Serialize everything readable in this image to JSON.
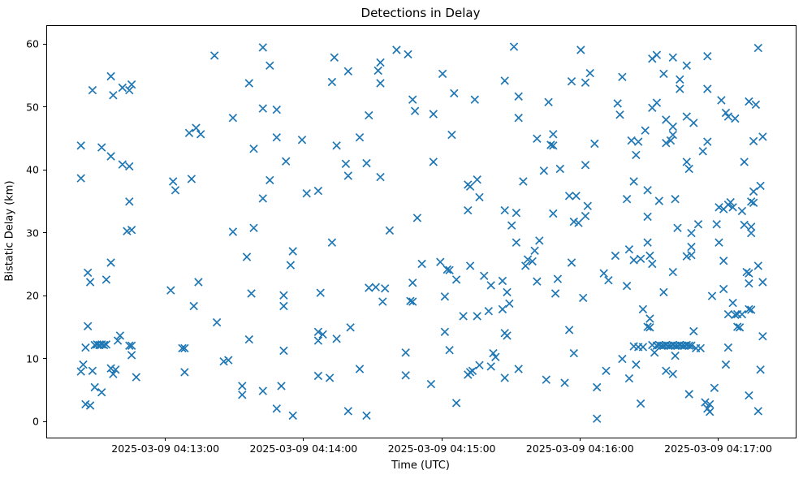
{
  "figure": {
    "title": "Detections in Delay",
    "background_color": "#ffffff",
    "accent_color": "#1f77b4"
  },
  "chart_data": {
    "type": "scatter",
    "title": "Detections in Delay",
    "xlabel": "Time (UTC)",
    "ylabel": "Bistatic Delay (km)",
    "legend": null,
    "grid": false,
    "marker": {
      "style": "x",
      "color": "#1f77b4",
      "half_size_px": 4.6,
      "stroke_px": 1.7
    },
    "x_unit": "seconds after 2025-03-09 04:12:00 UTC",
    "xlim": [
      8.3,
      333.3
    ],
    "ylim": [
      -2.4,
      63.0
    ],
    "xticks": [
      {
        "value": 60,
        "label": "2025-03-09 04:13:00"
      },
      {
        "value": 120,
        "label": "2025-03-09 04:14:00"
      },
      {
        "value": 180,
        "label": "2025-03-09 04:15:00"
      },
      {
        "value": 240,
        "label": "2025-03-09 04:16:00"
      },
      {
        "value": 300,
        "label": "2025-03-09 04:17:00"
      }
    ],
    "yticks": [
      0,
      10,
      20,
      30,
      40,
      50,
      60
    ],
    "points": [
      [
        23,
        44.0
      ],
      [
        32,
        43.7
      ],
      [
        36,
        42.3
      ],
      [
        41,
        41.0
      ],
      [
        44,
        40.7
      ],
      [
        23,
        38.8
      ],
      [
        63,
        38.3
      ],
      [
        71,
        38.7
      ],
      [
        64,
        36.9
      ],
      [
        44,
        35.1
      ],
      [
        36,
        55.0
      ],
      [
        28,
        52.8
      ],
      [
        37,
        52.0
      ],
      [
        41,
        53.2
      ],
      [
        45,
        53.7
      ],
      [
        44,
        52.8
      ],
      [
        70,
        46.0
      ],
      [
        73,
        46.8
      ],
      [
        75,
        45.8
      ],
      [
        81,
        58.3
      ],
      [
        89,
        48.4
      ],
      [
        43,
        30.4
      ],
      [
        45,
        30.6
      ],
      [
        89,
        30.3
      ],
      [
        36,
        25.4
      ],
      [
        26,
        23.8
      ],
      [
        27,
        22.3
      ],
      [
        34,
        22.7
      ],
      [
        74,
        22.3
      ],
      [
        62,
        21.0
      ],
      [
        72,
        18.5
      ],
      [
        82,
        15.9
      ],
      [
        26,
        15.3
      ],
      [
        40,
        13.8
      ],
      [
        39,
        13.0
      ],
      [
        25,
        11.9
      ],
      [
        29,
        12.3
      ],
      [
        30,
        12.4
      ],
      [
        31,
        12.3
      ],
      [
        32,
        12.4
      ],
      [
        33,
        12.3
      ],
      [
        34,
        12.4
      ],
      [
        44,
        12.2
      ],
      [
        45,
        12.2
      ],
      [
        45,
        10.7
      ],
      [
        67,
        11.8
      ],
      [
        68,
        11.8
      ],
      [
        85,
        9.7
      ],
      [
        87,
        9.9
      ],
      [
        24,
        9.2
      ],
      [
        23,
        8.1
      ],
      [
        28,
        8.2
      ],
      [
        36,
        8.6
      ],
      [
        38,
        8.4
      ],
      [
        37,
        7.7
      ],
      [
        47,
        7.2
      ],
      [
        68,
        8.0
      ],
      [
        29,
        5.6
      ],
      [
        32,
        4.8
      ],
      [
        25,
        2.9
      ],
      [
        27,
        2.7
      ],
      [
        102,
        59.6
      ],
      [
        160,
        59.2
      ],
      [
        165,
        58.5
      ],
      [
        133,
        58.0
      ],
      [
        105,
        56.7
      ],
      [
        153,
        57.2
      ],
      [
        152,
        55.9
      ],
      [
        139,
        55.8
      ],
      [
        96,
        53.9
      ],
      [
        132,
        54.1
      ],
      [
        153,
        53.9
      ],
      [
        167,
        51.3
      ],
      [
        168,
        49.5
      ],
      [
        102,
        49.9
      ],
      [
        108,
        49.7
      ],
      [
        148,
        48.8
      ],
      [
        108,
        45.3
      ],
      [
        119,
        44.9
      ],
      [
        144,
        45.3
      ],
      [
        134,
        44.0
      ],
      [
        98,
        43.5
      ],
      [
        112,
        41.5
      ],
      [
        138,
        41.1
      ],
      [
        147,
        41.2
      ],
      [
        139,
        39.2
      ],
      [
        153,
        39.0
      ],
      [
        105,
        38.5
      ],
      [
        121,
        36.4
      ],
      [
        126,
        36.8
      ],
      [
        102,
        35.6
      ],
      [
        169,
        32.5
      ],
      [
        98,
        30.9
      ],
      [
        157,
        30.5
      ],
      [
        132,
        28.6
      ],
      [
        95,
        26.3
      ],
      [
        115,
        27.2
      ],
      [
        114,
        25.0
      ],
      [
        167,
        22.2
      ],
      [
        148,
        21.4
      ],
      [
        151,
        21.5
      ],
      [
        155,
        21.3
      ],
      [
        97,
        20.5
      ],
      [
        127,
        20.6
      ],
      [
        111,
        20.2
      ],
      [
        111,
        18.5
      ],
      [
        154,
        19.2
      ],
      [
        166,
        19.3
      ],
      [
        167,
        19.2
      ],
      [
        140,
        15.1
      ],
      [
        126,
        14.4
      ],
      [
        128,
        14.0
      ],
      [
        126,
        13.0
      ],
      [
        134,
        13.3
      ],
      [
        96,
        13.2
      ],
      [
        111,
        11.4
      ],
      [
        164,
        11.1
      ],
      [
        144,
        8.5
      ],
      [
        126,
        7.4
      ],
      [
        131,
        7.1
      ],
      [
        164,
        7.5
      ],
      [
        93,
        5.8
      ],
      [
        93,
        4.4
      ],
      [
        102,
        5.0
      ],
      [
        110,
        5.8
      ],
      [
        108,
        2.2
      ],
      [
        115,
        1.1
      ],
      [
        139,
        1.8
      ],
      [
        147,
        1.1
      ],
      [
        211,
        59.7
      ],
      [
        240,
        59.2
      ],
      [
        180,
        55.4
      ],
      [
        244,
        55.5
      ],
      [
        207,
        54.3
      ],
      [
        236,
        54.2
      ],
      [
        242,
        54.0
      ],
      [
        185,
        52.3
      ],
      [
        194,
        51.3
      ],
      [
        213,
        51.8
      ],
      [
        226,
        50.9
      ],
      [
        176,
        49.0
      ],
      [
        213,
        48.4
      ],
      [
        184,
        45.7
      ],
      [
        221,
        45.1
      ],
      [
        228,
        45.8
      ],
      [
        227,
        44.1
      ],
      [
        228,
        44.0
      ],
      [
        246,
        44.3
      ],
      [
        176,
        41.4
      ],
      [
        224,
        40.0
      ],
      [
        231,
        40.3
      ],
      [
        242,
        40.9
      ],
      [
        195,
        38.6
      ],
      [
        191,
        37.8
      ],
      [
        192,
        37.5
      ],
      [
        215,
        38.3
      ],
      [
        235,
        36.0
      ],
      [
        238,
        36.0
      ],
      [
        196,
        35.8
      ],
      [
        243,
        34.4
      ],
      [
        191,
        33.7
      ],
      [
        207,
        33.7
      ],
      [
        212,
        33.3
      ],
      [
        228,
        33.2
      ],
      [
        242,
        32.8
      ],
      [
        237,
        31.9
      ],
      [
        239,
        31.7
      ],
      [
        210,
        31.3
      ],
      [
        171,
        25.2
      ],
      [
        212,
        28.6
      ],
      [
        222,
        28.9
      ],
      [
        220,
        27.3
      ],
      [
        179,
        25.5
      ],
      [
        182,
        24.3
      ],
      [
        183,
        24.2
      ],
      [
        192,
        24.9
      ],
      [
        217,
        25.9
      ],
      [
        219,
        25.6
      ],
      [
        216,
        24.9
      ],
      [
        236,
        25.4
      ],
      [
        250,
        23.7
      ],
      [
        186,
        22.7
      ],
      [
        198,
        23.3
      ],
      [
        201,
        21.8
      ],
      [
        206,
        22.5
      ],
      [
        208,
        20.7
      ],
      [
        221,
        22.4
      ],
      [
        230,
        22.8
      ],
      [
        229,
        20.5
      ],
      [
        181,
        20.0
      ],
      [
        241,
        19.8
      ],
      [
        209,
        18.9
      ],
      [
        206,
        18.0
      ],
      [
        200,
        17.7
      ],
      [
        189,
        16.9
      ],
      [
        195,
        16.9
      ],
      [
        181,
        14.4
      ],
      [
        207,
        14.2
      ],
      [
        208,
        13.8
      ],
      [
        235,
        14.7
      ],
      [
        183,
        11.5
      ],
      [
        202,
        11.0
      ],
      [
        203,
        10.4
      ],
      [
        237,
        11.0
      ],
      [
        193,
        8.2
      ],
      [
        196,
        9.1
      ],
      [
        201,
        8.9
      ],
      [
        191,
        7.6
      ],
      [
        192,
        8.0
      ],
      [
        213,
        8.5
      ],
      [
        207,
        7.1
      ],
      [
        225,
        6.8
      ],
      [
        175,
        6.1
      ],
      [
        233,
        6.3
      ],
      [
        251,
        8.2
      ],
      [
        247,
        5.6
      ],
      [
        186,
        3.1
      ],
      [
        247,
        0.6
      ],
      [
        317,
        59.5
      ],
      [
        271,
        57.8
      ],
      [
        273,
        58.4
      ],
      [
        280,
        58.0
      ],
      [
        295,
        58.2
      ],
      [
        286,
        56.7
      ],
      [
        258,
        54.9
      ],
      [
        276,
        55.4
      ],
      [
        283,
        54.5
      ],
      [
        283,
        53.0
      ],
      [
        295,
        53.0
      ],
      [
        301,
        51.2
      ],
      [
        313,
        51.0
      ],
      [
        316,
        50.5
      ],
      [
        256,
        50.7
      ],
      [
        257,
        48.9
      ],
      [
        271,
        50.0
      ],
      [
        273,
        50.8
      ],
      [
        303,
        49.2
      ],
      [
        304,
        48.6
      ],
      [
        307,
        48.3
      ],
      [
        277,
        48.1
      ],
      [
        286,
        48.6
      ],
      [
        289,
        47.6
      ],
      [
        280,
        47.0
      ],
      [
        268,
        46.4
      ],
      [
        280,
        45.7
      ],
      [
        279,
        44.8
      ],
      [
        262,
        44.8
      ],
      [
        265,
        44.6
      ],
      [
        277,
        44.4
      ],
      [
        295,
        44.6
      ],
      [
        315,
        44.7
      ],
      [
        319,
        45.4
      ],
      [
        293,
        43.1
      ],
      [
        264,
        42.5
      ],
      [
        286,
        41.4
      ],
      [
        287,
        40.3
      ],
      [
        311,
        41.4
      ],
      [
        263,
        38.3
      ],
      [
        318,
        37.6
      ],
      [
        269,
        36.9
      ],
      [
        315,
        36.7
      ],
      [
        260,
        35.5
      ],
      [
        274,
        35.2
      ],
      [
        281,
        35.5
      ],
      [
        314,
        35.1
      ],
      [
        300,
        34.2
      ],
      [
        302,
        33.9
      ],
      [
        304,
        34.6
      ],
      [
        305,
        35.0
      ],
      [
        306,
        34.2
      ],
      [
        310,
        33.6
      ],
      [
        315,
        34.9
      ],
      [
        269,
        32.7
      ],
      [
        282,
        30.9
      ],
      [
        291,
        31.5
      ],
      [
        288,
        30.1
      ],
      [
        299,
        31.5
      ],
      [
        311,
        31.4
      ],
      [
        314,
        31.1
      ],
      [
        314,
        30.1
      ],
      [
        269,
        28.6
      ],
      [
        300,
        28.6
      ],
      [
        261,
        27.5
      ],
      [
        255,
        26.5
      ],
      [
        263,
        25.8
      ],
      [
        266,
        26.0
      ],
      [
        270,
        26.5
      ],
      [
        271,
        25.2
      ],
      [
        286,
        26.4
      ],
      [
        288,
        26.6
      ],
      [
        288,
        27.9
      ],
      [
        302,
        25.7
      ],
      [
        317,
        24.9
      ],
      [
        280,
        23.9
      ],
      [
        312,
        23.9
      ],
      [
        313,
        23.7
      ],
      [
        313,
        22.1
      ],
      [
        252,
        22.6
      ],
      [
        260,
        21.7
      ],
      [
        319,
        22.3
      ],
      [
        276,
        20.7
      ],
      [
        297,
        20.1
      ],
      [
        302,
        21.2
      ],
      [
        267,
        18.0
      ],
      [
        306,
        19.0
      ],
      [
        304,
        17.2
      ],
      [
        307,
        17.1
      ],
      [
        308,
        17.2
      ],
      [
        310,
        17.2
      ],
      [
        313,
        18.0
      ],
      [
        314,
        17.9
      ],
      [
        270,
        16.5
      ],
      [
        269,
        15.2
      ],
      [
        270,
        15.1
      ],
      [
        308,
        15.2
      ],
      [
        309,
        15.1
      ],
      [
        289,
        14.5
      ],
      [
        263,
        12.1
      ],
      [
        265,
        12.0
      ],
      [
        267,
        12.0
      ],
      [
        271,
        12.3
      ],
      [
        272,
        11.1
      ],
      [
        273,
        12.2
      ],
      [
        274,
        12.3
      ],
      [
        275,
        12.2
      ],
      [
        276,
        12.2
      ],
      [
        277,
        12.3
      ],
      [
        278,
        12.2
      ],
      [
        279,
        12.2
      ],
      [
        280,
        12.3
      ],
      [
        281,
        12.2
      ],
      [
        282,
        12.2
      ],
      [
        283,
        12.3
      ],
      [
        284,
        12.2
      ],
      [
        285,
        12.2
      ],
      [
        286,
        12.3
      ],
      [
        287,
        12.2
      ],
      [
        288,
        12.2
      ],
      [
        290,
        11.8
      ],
      [
        292,
        11.8
      ],
      [
        304,
        11.9
      ],
      [
        319,
        13.7
      ],
      [
        258,
        10.1
      ],
      [
        264,
        9.2
      ],
      [
        281,
        10.6
      ],
      [
        277,
        8.2
      ],
      [
        280,
        7.7
      ],
      [
        303,
        9.2
      ],
      [
        318,
        8.4
      ],
      [
        261,
        7.0
      ],
      [
        298,
        5.5
      ],
      [
        287,
        4.5
      ],
      [
        313,
        4.3
      ],
      [
        266,
        3.0
      ],
      [
        294,
        3.2
      ],
      [
        296,
        2.9
      ],
      [
        295,
        2.2
      ],
      [
        296,
        1.7
      ],
      [
        317,
        1.8
      ]
    ]
  }
}
